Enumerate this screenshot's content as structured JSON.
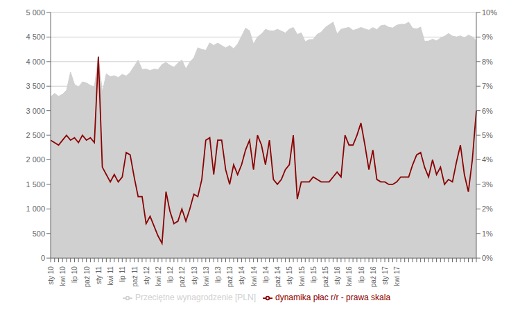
{
  "chart_data": {
    "type": "area",
    "categories": [
      "sty 10",
      null,
      null,
      "kwi 10",
      null,
      null,
      "lip 10",
      null,
      null,
      "paź 10",
      null,
      null,
      "sty 11",
      null,
      null,
      "kwi 11",
      null,
      null,
      "lip 11",
      null,
      null,
      "paź 11",
      null,
      null,
      "sty 12",
      null,
      null,
      "kwi 12",
      null,
      null,
      "lip 12",
      null,
      null,
      "paź 12",
      null,
      null,
      "sty 13",
      null,
      null,
      "kwi 13",
      null,
      null,
      "lip 13",
      null,
      null,
      "paź 13",
      null,
      null,
      "sty 14",
      null,
      null,
      "kwi 14",
      null,
      null,
      "lip 14",
      null,
      null,
      "paź 14",
      null,
      null,
      "sty 15",
      null,
      null,
      "kwi 15",
      null,
      null,
      "lip 15",
      null,
      null,
      "paź 15",
      null,
      null,
      "sty 16",
      null,
      null,
      "kwi 16",
      null,
      null,
      "lip 16",
      null,
      null,
      "paź 16",
      null,
      null,
      "sty 17",
      null,
      null,
      "kwi 17",
      null,
      null,
      null,
      null,
      null,
      null,
      null,
      null,
      null,
      null,
      null,
      null,
      null,
      null,
      null,
      null,
      null,
      null,
      null,
      null
    ],
    "series": [
      {
        "name": "Przeciętne wynagrodzenie [PLN]",
        "type": "area",
        "color": "#d0d0d0",
        "values": [
          3282,
          3354,
          3294,
          3336,
          3416,
          3785,
          3539,
          3477,
          3588,
          3567,
          3518,
          3479,
          4111,
          3374,
          3751,
          3694,
          3713,
          3677,
          3740,
          3707,
          3781,
          3907,
          4027,
          3839,
          3849,
          3818,
          3848,
          3837,
          3942,
          3985,
          3925,
          3888,
          3970,
          4033,
          3853,
          3990,
          4076,
          4282,
          4248,
          4231,
          4383,
          4330,
          4378,
          4328,
          4280,
          4328,
          4262,
          4357,
          4517,
          4682,
          4629,
          4356,
          4503,
          4563,
          4657,
          4630,
          4624,
          4657,
          4624,
          4583,
          4661,
          4695,
          4553,
          4586,
          4404,
          4449,
          4450,
          4556,
          4598,
          4694,
          4750,
          4805,
          4563,
          4659,
          4680,
          4698,
          4638,
          4660,
          4697,
          4666,
          4641,
          4694,
          4651,
          4731,
          4746,
          4700,
          4686,
          4741,
          4760,
          4759,
          4804,
          4680,
          4663,
          4703,
          4413,
          4419,
          4457,
          4425,
          4479,
          4517,
          4572,
          4521,
          4501,
          4525,
          4481,
          4542,
          4503,
          4433
        ]
      },
      {
        "name": "dynamika płac r/r - prawa skala",
        "type": "line",
        "color": "#8b0000",
        "axis": "y2",
        "values": [
          0.048,
          0.047,
          0.046,
          0.048,
          0.05,
          0.048,
          0.049,
          0.047,
          0.05,
          0.048,
          0.049,
          0.047,
          0.082,
          0.037,
          0.034,
          0.031,
          0.034,
          0.031,
          0.033,
          0.043,
          0.042,
          0.033,
          0.025,
          0.025,
          0.014,
          0.017,
          0.013,
          0.009,
          0.006,
          0.027,
          0.019,
          0.014,
          0.015,
          0.02,
          0.015,
          0.02,
          0.026,
          0.025,
          0.032,
          0.048,
          0.049,
          0.034,
          0.048,
          0.048,
          0.036,
          0.03,
          0.038,
          0.034,
          0.038,
          0.044,
          0.048,
          0.036,
          0.05,
          0.046,
          0.038,
          0.048,
          0.032,
          0.03,
          0.032,
          0.036,
          0.038,
          0.05,
          0.024,
          0.031,
          0.031,
          0.031,
          0.033,
          0.032,
          0.031,
          0.031,
          0.031,
          0.033,
          0.035,
          0.033,
          0.05,
          0.046,
          0.046,
          0.05,
          0.055,
          0.046,
          0.036,
          0.044,
          0.032,
          0.031,
          0.031,
          0.03,
          0.03,
          0.031,
          0.033,
          0.033,
          0.033,
          0.038,
          0.042,
          0.043,
          0.037,
          0.033,
          0.04,
          0.034,
          0.037,
          0.03,
          0.032,
          0.031,
          0.039,
          0.046,
          0.034,
          0.027,
          0.04,
          0.06
        ]
      }
    ],
    "ylim": [
      0,
      5000
    ],
    "yticks": [
      0,
      500,
      {
        "value": 1000,
        "label": "1 000"
      },
      {
        "value": 1500,
        "label": "1 500"
      },
      {
        "value": 2000,
        "label": "2 000"
      },
      {
        "value": 2500,
        "label": "2 500"
      },
      {
        "value": 3000,
        "label": "3 000"
      },
      {
        "value": 3500,
        "label": "3 500"
      },
      {
        "value": 4000,
        "label": "4 000"
      },
      {
        "value": 4500,
        "label": "4 500"
      },
      {
        "value": 5000,
        "label": "5 000"
      }
    ],
    "y2lim": [
      0,
      0.1
    ],
    "y2ticks": [
      {
        "value": 0.0,
        "label": "0%"
      },
      {
        "value": 0.01,
        "label": "1%"
      },
      {
        "value": 0.02,
        "label": "2%"
      },
      {
        "value": 0.03,
        "label": "3%"
      },
      {
        "value": 0.04,
        "label": "4%"
      },
      {
        "value": 0.05,
        "label": "5%"
      },
      {
        "value": 0.06,
        "label": "6%"
      },
      {
        "value": 0.07,
        "label": "7%"
      },
      {
        "value": 0.08,
        "label": "8%"
      },
      {
        "value": 0.09,
        "label": "9%"
      },
      {
        "value": 0.1,
        "label": "10%"
      }
    ],
    "grid": true,
    "legend": "bottom"
  }
}
